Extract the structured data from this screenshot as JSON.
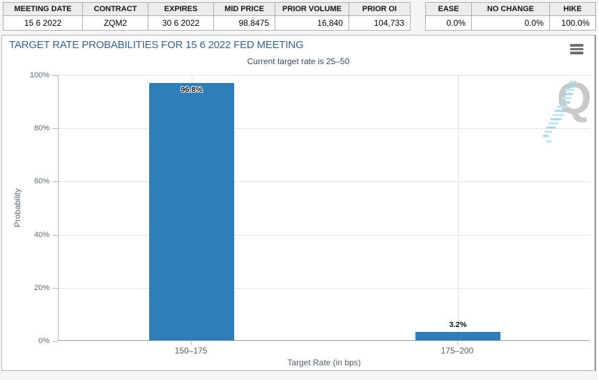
{
  "quote_table": {
    "headers": [
      "MEETING DATE",
      "CONTRACT",
      "EXPIRES",
      "MID PRICE",
      "PRIOR VOLUME",
      "PRIOR OI"
    ],
    "values": [
      "15 6 2022",
      "ZQM2",
      "30 6 2022",
      "98.8475",
      "16,840",
      "104,733"
    ]
  },
  "action_table": {
    "headers": [
      "EASE",
      "NO CHANGE",
      "HIKE"
    ],
    "values": [
      "0.0%",
      "0.0%",
      "100.0%"
    ]
  },
  "chart": {
    "watermark_letter": "Q"
  },
  "chart_data": {
    "type": "bar",
    "title": "TARGET RATE PROBABILITIES FOR 15 6 2022 FED MEETING",
    "subtitle": "Current target rate is 25–50",
    "categories": [
      "150–175",
      "175–200"
    ],
    "values": [
      96.8,
      3.2
    ],
    "value_labels": [
      "96.8%",
      "3.2%"
    ],
    "xlabel": "Target Rate (in bps)",
    "ylabel": "Probability",
    "ylim": [
      0,
      100
    ],
    "yticks": [
      0,
      20,
      40,
      60,
      80,
      100
    ],
    "ytick_labels": [
      "0%",
      "20%",
      "40%",
      "60%",
      "80%",
      "100%"
    ],
    "bar_color": "#2c7fb8",
    "grid": true,
    "legend": false
  }
}
